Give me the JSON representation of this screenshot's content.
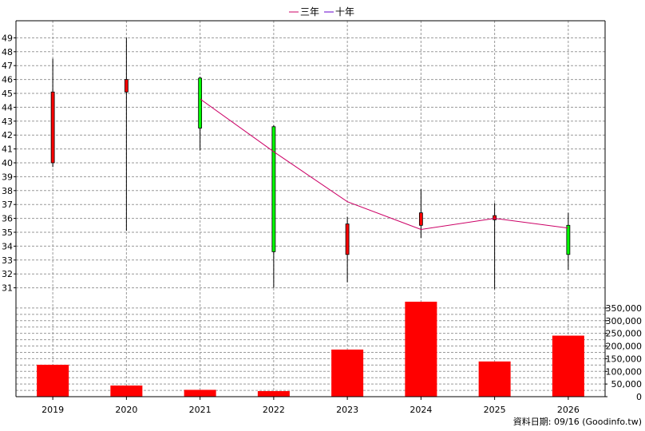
{
  "chart_data": {
    "type": "candlestick+bar",
    "legend": [
      {
        "name": "三年",
        "color": "#cc0066"
      },
      {
        "name": "十年",
        "color": "#6600cc"
      }
    ],
    "footer": "資料日期: 09/16  (Goodinfo.tw)",
    "categories": [
      "2019",
      "2020",
      "2021",
      "2022",
      "2023",
      "2024",
      "2025",
      "2026"
    ],
    "price_axis": {
      "ylim": [
        30,
        50
      ],
      "ticks": [
        "31",
        "32",
        "33",
        "34",
        "35",
        "36",
        "37",
        "38",
        "39",
        "40",
        "41",
        "42",
        "43",
        "44",
        "45",
        "46",
        "47",
        "48",
        "49"
      ]
    },
    "candles": [
      {
        "open": 40.0,
        "high": 47.5,
        "low": 39.7,
        "close": 45.1,
        "color": "red"
      },
      {
        "open": 45.1,
        "high": 49.0,
        "low": 35.1,
        "close": 46.0,
        "color": "red"
      },
      {
        "open": 46.1,
        "high": 46.2,
        "low": 40.9,
        "close": 42.5,
        "color": "green"
      },
      {
        "open": 42.6,
        "high": 42.7,
        "low": 31.0,
        "close": 33.6,
        "color": "green"
      },
      {
        "open": 33.4,
        "high": 36.1,
        "low": 31.4,
        "close": 35.6,
        "color": "red"
      },
      {
        "open": 35.5,
        "high": 38.1,
        "low": 34.6,
        "close": 36.4,
        "color": "red"
      },
      {
        "open": 35.9,
        "high": 37.1,
        "low": 30.9,
        "close": 36.2,
        "color": "red"
      },
      {
        "open": 35.5,
        "high": 36.4,
        "low": 32.3,
        "close": 33.4,
        "color": "green"
      }
    ],
    "line_three_year": {
      "name": "三年",
      "color": "#cc0066",
      "points": [
        {
          "x": "2021",
          "y": 44.6
        },
        {
          "x": "2022",
          "y": 40.8
        },
        {
          "x": "2023",
          "y": 37.2
        },
        {
          "x": "2024",
          "y": 35.2
        },
        {
          "x": "2025",
          "y": 36.0
        },
        {
          "x": "2026",
          "y": 35.3
        }
      ]
    },
    "volume_axis": {
      "ylim": [
        0,
        375000
      ],
      "ticks": [
        "0",
        "50,000",
        "100,000",
        "150,000",
        "200,000",
        "250,000",
        "300,000",
        "350,000"
      ],
      "tick_values": [
        0,
        50000,
        100000,
        150000,
        200000,
        250000,
        300000,
        350000
      ]
    },
    "volume": {
      "color": "#ff0000",
      "values": [
        126000,
        44000,
        27000,
        22000,
        186000,
        375000,
        139000,
        241000
      ]
    },
    "colors": {
      "up": "#ff0000",
      "down": "#00ff00",
      "wick": "#000000"
    }
  }
}
